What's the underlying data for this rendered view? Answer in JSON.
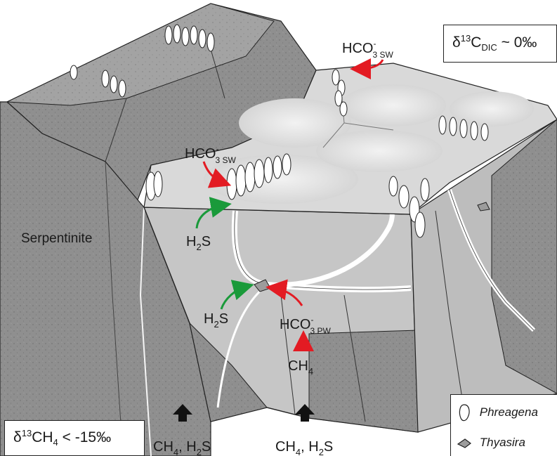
{
  "labels": {
    "serpentinite": "Serpentinite",
    "hco3_sw_top": {
      "base": "HCO",
      "sup": "-",
      "sub": "3 SW"
    },
    "hco3_sw_left": {
      "base": "HCO",
      "sup": "-",
      "sub": "3 SW"
    },
    "hco3_pw": {
      "base": "HCO",
      "sup": "-",
      "sub": "3 PW"
    },
    "h2s_upper": {
      "a": "H",
      "sub": "2",
      "b": "S"
    },
    "h2s_lower": {
      "a": "H",
      "sub": "2",
      "b": "S"
    },
    "ch4": {
      "a": "CH",
      "sub": "4"
    },
    "flux_left": {
      "a": "CH",
      "sub1": "4",
      "b": ", H",
      "sub2": "2",
      "c": "S"
    },
    "flux_right": {
      "a": "CH",
      "sub1": "4",
      "b": ", H",
      "sub2": "2",
      "c": "S"
    }
  },
  "boxes": {
    "dic": {
      "delta": "δ",
      "sup": "13",
      "a": "C",
      "sub": "DIC",
      "b": " ~ 0‰"
    },
    "ch4": {
      "delta": "δ",
      "sup": "13",
      "a": "CH",
      "sub": "4",
      "b": " < -15‰"
    }
  },
  "legend": [
    {
      "name": "Phreagena",
      "icon": "phreagena-shell-icon"
    },
    {
      "name": "Thyasira",
      "icon": "thyasira-shell-icon"
    }
  ],
  "colors": {
    "rock_dark": "#8c8c8c",
    "rock_mid": "#a6a6a6",
    "sediment_surface": "#d9d9d9",
    "sediment_light": "#e8e8e8",
    "block_face": "#c8c8c8",
    "vein": "#ffffff",
    "arrow_red": "#e31b23",
    "arrow_green": "#1a9a3a",
    "arrow_black": "#111111"
  }
}
